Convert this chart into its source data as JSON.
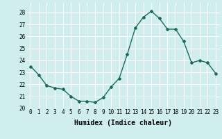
{
  "x": [
    0,
    1,
    2,
    3,
    4,
    5,
    6,
    7,
    8,
    9,
    10,
    11,
    12,
    13,
    14,
    15,
    16,
    17,
    18,
    19,
    20,
    21,
    22,
    23
  ],
  "y": [
    23.5,
    22.8,
    21.9,
    21.7,
    21.6,
    21.0,
    20.6,
    20.6,
    20.5,
    20.9,
    21.8,
    22.5,
    24.5,
    26.7,
    27.6,
    28.1,
    27.5,
    26.6,
    26.6,
    25.6,
    23.8,
    24.0,
    23.8,
    22.9
  ],
  "line_color": "#1a6b5a",
  "marker": "D",
  "marker_size": 2.0,
  "line_width": 1.0,
  "bg_color": "#d0eeee",
  "grid_color": "#ffffff",
  "xlabel": "Humidex (Indice chaleur)",
  "xlim": [
    -0.5,
    23.5
  ],
  "ylim": [
    20,
    28.8
  ],
  "yticks": [
    20,
    21,
    22,
    23,
    24,
    25,
    26,
    27,
    28
  ],
  "xticks": [
    0,
    1,
    2,
    3,
    4,
    5,
    6,
    7,
    8,
    9,
    10,
    11,
    12,
    13,
    14,
    15,
    16,
    17,
    18,
    19,
    20,
    21,
    22,
    23
  ],
  "tick_fontsize": 5.5,
  "xlabel_fontsize": 7.0
}
